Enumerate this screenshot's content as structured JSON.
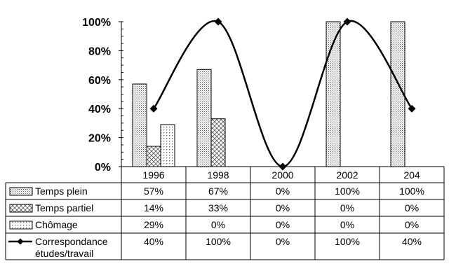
{
  "chart_data": {
    "type": "bar",
    "categories": [
      "1996",
      "1998",
      "2000",
      "2002",
      "204"
    ],
    "ylim": [
      0,
      100
    ],
    "ytick_labels": [
      "0%",
      "20%",
      "40%",
      "60%",
      "80%",
      "100%"
    ],
    "grid": false,
    "legend_placement": "data-table-left",
    "series": [
      {
        "name": "Temps plein",
        "kind": "bar",
        "pattern": "fine-dots",
        "values": [
          57,
          67,
          0,
          100,
          100
        ],
        "table_labels": [
          "57%",
          "67%",
          "0%",
          "100%",
          "100%"
        ]
      },
      {
        "name": "Temps partiel",
        "kind": "bar",
        "pattern": "cross-hatch",
        "values": [
          14,
          33,
          0,
          0,
          0
        ],
        "table_labels": [
          "14%",
          "33%",
          "0%",
          "0%",
          "0%"
        ]
      },
      {
        "name": "Chômage",
        "kind": "bar",
        "pattern": "dots",
        "values": [
          29,
          0,
          0,
          0,
          0
        ],
        "table_labels": [
          "29%",
          "0%",
          "0%",
          "0%",
          "0%"
        ]
      },
      {
        "name": "Correspondance études/travail",
        "name_lines": [
          "Correspondance",
          "études/travail"
        ],
        "kind": "line",
        "smooth": true,
        "marker": "diamond",
        "values": [
          40,
          100,
          0,
          100,
          40
        ],
        "table_labels": [
          "40%",
          "100%",
          "0%",
          "100%",
          "40%"
        ]
      }
    ],
    "colors": {
      "ink": "#000000",
      "background": "#ffffff",
      "pattern_dark": "#555555",
      "pattern_light": "#777777"
    }
  }
}
